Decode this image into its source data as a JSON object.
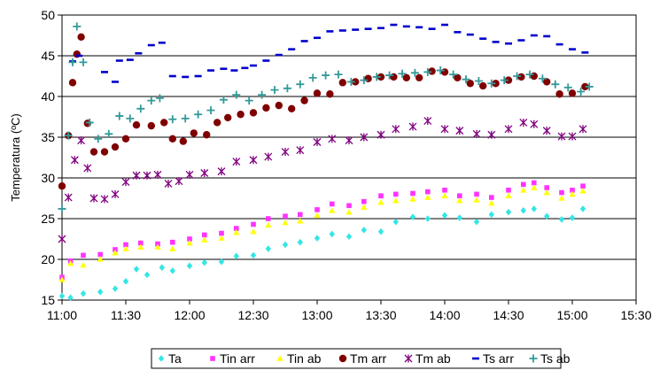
{
  "chart_data": {
    "type": "scatter",
    "ylabel": "Temperatura (ºC)",
    "xlabel": "",
    "ylim": [
      15,
      50
    ],
    "yticks": [
      15,
      20,
      25,
      30,
      35,
      40,
      45,
      50
    ],
    "xlim": [
      "11:00",
      "15:30"
    ],
    "xticks": [
      "11:00",
      "11:30",
      "12:00",
      "12:30",
      "13:00",
      "13:30",
      "14:00",
      "14:30",
      "15:00",
      "15:30"
    ],
    "grid": "horizontal",
    "legend_position": "bottom",
    "series": [
      {
        "name": "Ta",
        "color": "#33e6e6",
        "marker": "diamond",
        "points": [
          [
            "11:00",
            15.5
          ],
          [
            "11:04",
            15.3
          ],
          [
            "11:10",
            15.8
          ],
          [
            "11:18",
            16
          ],
          [
            "11:25",
            16.4
          ],
          [
            "11:30",
            17.3
          ],
          [
            "11:35",
            18.8
          ],
          [
            "11:40",
            18.1
          ],
          [
            "11:47",
            19
          ],
          [
            "11:52",
            18.6
          ],
          [
            "12:00",
            19.2
          ],
          [
            "12:07",
            19.6
          ],
          [
            "12:15",
            19.7
          ],
          [
            "12:22",
            20.4
          ],
          [
            "12:30",
            20.5
          ],
          [
            "12:37",
            21.3
          ],
          [
            "12:45",
            21.8
          ],
          [
            "12:52",
            22.1
          ],
          [
            "13:00",
            22.6
          ],
          [
            "13:07",
            23.1
          ],
          [
            "13:15",
            22.8
          ],
          [
            "13:22",
            23.6
          ],
          [
            "13:30",
            23.4
          ],
          [
            "13:37",
            24.6
          ],
          [
            "13:45",
            25.2
          ],
          [
            "13:52",
            25
          ],
          [
            "14:00",
            25.4
          ],
          [
            "14:07",
            25.1
          ],
          [
            "14:15",
            24.6
          ],
          [
            "14:22",
            25.5
          ],
          [
            "14:30",
            25.8
          ],
          [
            "14:37",
            26
          ],
          [
            "14:42",
            26.2
          ],
          [
            "14:48",
            25.3
          ],
          [
            "14:55",
            24.9
          ],
          [
            "15:00",
            25.1
          ],
          [
            "15:05",
            26.2
          ]
        ]
      },
      {
        "name": "Tin arr",
        "color": "#ff33ff",
        "marker": "square",
        "points": [
          [
            "11:00",
            17.8
          ],
          [
            "11:04",
            19.8
          ],
          [
            "11:10",
            20.5
          ],
          [
            "11:18",
            20.6
          ],
          [
            "11:25",
            21.2
          ],
          [
            "11:30",
            21.8
          ],
          [
            "11:37",
            22
          ],
          [
            "11:45",
            21.9
          ],
          [
            "11:52",
            22.1
          ],
          [
            "12:00",
            22.5
          ],
          [
            "12:07",
            23
          ],
          [
            "12:15",
            23.2
          ],
          [
            "12:22",
            23.8
          ],
          [
            "12:30",
            24.3
          ],
          [
            "12:37",
            25
          ],
          [
            "12:45",
            25.3
          ],
          [
            "12:52",
            25.5
          ],
          [
            "13:00",
            26.1
          ],
          [
            "13:07",
            26.8
          ],
          [
            "13:15",
            26.6
          ],
          [
            "13:22",
            27.1
          ],
          [
            "13:30",
            27.8
          ],
          [
            "13:37",
            28
          ],
          [
            "13:45",
            28.1
          ],
          [
            "13:52",
            28.3
          ],
          [
            "14:00",
            28.5
          ],
          [
            "14:07",
            27.8
          ],
          [
            "14:15",
            28
          ],
          [
            "14:22",
            27.6
          ],
          [
            "14:30",
            28.5
          ],
          [
            "14:37",
            29.2
          ],
          [
            "14:42",
            29.4
          ],
          [
            "14:48",
            28.8
          ],
          [
            "14:55",
            28.2
          ],
          [
            "15:00",
            28.5
          ],
          [
            "15:05",
            29
          ]
        ]
      },
      {
        "name": "Tin ab",
        "color": "#ffff00",
        "marker": "triangle",
        "points": [
          [
            "11:00",
            17.5
          ],
          [
            "11:04",
            19.5
          ],
          [
            "11:10",
            19.3
          ],
          [
            "11:18",
            20
          ],
          [
            "11:25",
            20.8
          ],
          [
            "11:30",
            21.3
          ],
          [
            "11:37",
            21.5
          ],
          [
            "11:45",
            21.5
          ],
          [
            "11:52",
            21.3
          ],
          [
            "12:00",
            22
          ],
          [
            "12:07",
            22.4
          ],
          [
            "12:15",
            22.6
          ],
          [
            "12:22",
            23.3
          ],
          [
            "12:30",
            23.4
          ],
          [
            "12:37",
            24.2
          ],
          [
            "12:45",
            24.5
          ],
          [
            "12:52",
            24.7
          ],
          [
            "13:00",
            25.4
          ],
          [
            "13:07",
            26
          ],
          [
            "13:15",
            25.8
          ],
          [
            "13:22",
            26.4
          ],
          [
            "13:30",
            27
          ],
          [
            "13:37",
            27.2
          ],
          [
            "13:45",
            27.4
          ],
          [
            "13:52",
            27.6
          ],
          [
            "14:00",
            27.8
          ],
          [
            "14:07",
            27.2
          ],
          [
            "14:15",
            27.3
          ],
          [
            "14:22",
            26.9
          ],
          [
            "14:30",
            27.8
          ],
          [
            "14:37",
            28.5
          ],
          [
            "14:42",
            28.8
          ],
          [
            "14:48",
            28.2
          ],
          [
            "14:55",
            27.5
          ],
          [
            "15:00",
            28
          ],
          [
            "15:05",
            28.4
          ]
        ]
      },
      {
        "name": "Tm arr",
        "color": "#800000",
        "marker": "circle",
        "points": [
          [
            "11:00",
            29
          ],
          [
            "11:03",
            35.2
          ],
          [
            "11:05",
            41.7
          ],
          [
            "11:07",
            45.2
          ],
          [
            "11:09",
            47.3
          ],
          [
            "11:12",
            36.7
          ],
          [
            "11:15",
            33.2
          ],
          [
            "11:20",
            33.2
          ],
          [
            "11:25",
            33.8
          ],
          [
            "11:30",
            34.8
          ],
          [
            "11:35",
            36.5
          ],
          [
            "11:42",
            36.4
          ],
          [
            "11:48",
            36.8
          ],
          [
            "11:52",
            34.8
          ],
          [
            "11:57",
            34.5
          ],
          [
            "12:02",
            35.5
          ],
          [
            "12:08",
            35.3
          ],
          [
            "12:13",
            36.8
          ],
          [
            "12:18",
            37.4
          ],
          [
            "12:24",
            37.8
          ],
          [
            "12:30",
            38
          ],
          [
            "12:36",
            38.6
          ],
          [
            "12:42",
            38.9
          ],
          [
            "12:48",
            38.5
          ],
          [
            "12:54",
            39.5
          ],
          [
            "13:00",
            40.4
          ],
          [
            "13:06",
            40.3
          ],
          [
            "13:12",
            41.7
          ],
          [
            "13:18",
            41.8
          ],
          [
            "13:24",
            42.2
          ],
          [
            "13:30",
            42.4
          ],
          [
            "13:36",
            42.4
          ],
          [
            "13:42",
            42.3
          ],
          [
            "13:48",
            42.3
          ],
          [
            "13:54",
            43.1
          ],
          [
            "14:00",
            43
          ],
          [
            "14:06",
            42.3
          ],
          [
            "14:12",
            41.6
          ],
          [
            "14:18",
            41.3
          ],
          [
            "14:24",
            41.6
          ],
          [
            "14:30",
            42
          ],
          [
            "14:36",
            42.4
          ],
          [
            "14:42",
            42.5
          ],
          [
            "14:48",
            41.8
          ],
          [
            "14:54",
            40.3
          ],
          [
            "15:00",
            40.4
          ],
          [
            "15:06",
            41.2
          ]
        ]
      },
      {
        "name": "Tm ab",
        "color": "#800080",
        "marker": "asterisk",
        "points": [
          [
            "11:00",
            22.5
          ],
          [
            "11:03",
            27.6
          ],
          [
            "11:06",
            32.2
          ],
          [
            "11:09",
            34.6
          ],
          [
            "11:12",
            31.2
          ],
          [
            "11:15",
            27.5
          ],
          [
            "11:20",
            27.4
          ],
          [
            "11:25",
            28
          ],
          [
            "11:30",
            29.5
          ],
          [
            "11:35",
            30.3
          ],
          [
            "11:40",
            30.3
          ],
          [
            "11:45",
            30.4
          ],
          [
            "11:50",
            29.3
          ],
          [
            "11:55",
            29.6
          ],
          [
            "12:00",
            30.4
          ],
          [
            "12:07",
            30.6
          ],
          [
            "12:15",
            30.8
          ],
          [
            "12:22",
            32
          ],
          [
            "12:30",
            32.2
          ],
          [
            "12:37",
            32.6
          ],
          [
            "12:45",
            33.2
          ],
          [
            "12:52",
            33.4
          ],
          [
            "13:00",
            34.4
          ],
          [
            "13:07",
            34.8
          ],
          [
            "13:15",
            34.6
          ],
          [
            "13:22",
            35
          ],
          [
            "13:30",
            35.3
          ],
          [
            "13:37",
            36
          ],
          [
            "13:45",
            36.3
          ],
          [
            "13:52",
            37
          ],
          [
            "14:00",
            36
          ],
          [
            "14:07",
            35.8
          ],
          [
            "14:15",
            35.4
          ],
          [
            "14:22",
            35.3
          ],
          [
            "14:30",
            36
          ],
          [
            "14:37",
            36.8
          ],
          [
            "14:42",
            36.6
          ],
          [
            "14:48",
            35.8
          ],
          [
            "14:55",
            35.1
          ],
          [
            "15:00",
            35.1
          ],
          [
            "15:05",
            36
          ]
        ]
      },
      {
        "name": "Ts arr",
        "color": "#0000cc",
        "marker": "dash",
        "points": [
          [
            "11:05",
            44.3
          ],
          [
            "11:08",
            45
          ],
          [
            "11:20",
            43
          ],
          [
            "11:25",
            41.8
          ],
          [
            "11:27",
            44.4
          ],
          [
            "11:32",
            44.5
          ],
          [
            "11:36",
            45.3
          ],
          [
            "11:42",
            46.3
          ],
          [
            "11:47",
            46.6
          ],
          [
            "11:52",
            42.5
          ],
          [
            "11:58",
            42.4
          ],
          [
            "12:04",
            42.5
          ],
          [
            "12:10",
            43.2
          ],
          [
            "12:16",
            43.4
          ],
          [
            "12:21",
            43.2
          ],
          [
            "12:26",
            43.5
          ],
          [
            "12:30",
            43.8
          ],
          [
            "12:36",
            44.4
          ],
          [
            "12:42",
            45.1
          ],
          [
            "12:48",
            45.8
          ],
          [
            "12:54",
            46.8
          ],
          [
            "13:00",
            47.2
          ],
          [
            "13:06",
            48
          ],
          [
            "13:12",
            48.1
          ],
          [
            "13:18",
            48.2
          ],
          [
            "13:24",
            48.3
          ],
          [
            "13:30",
            48.4
          ],
          [
            "13:36",
            48.8
          ],
          [
            "13:42",
            48.6
          ],
          [
            "13:48",
            48.5
          ],
          [
            "13:54",
            48.3
          ],
          [
            "14:00",
            48.8
          ],
          [
            "14:06",
            47.9
          ],
          [
            "14:12",
            47.6
          ],
          [
            "14:18",
            47.1
          ],
          [
            "14:24",
            46.7
          ],
          [
            "14:30",
            46.5
          ],
          [
            "14:36",
            46.9
          ],
          [
            "14:42",
            47.5
          ],
          [
            "14:48",
            47.4
          ],
          [
            "14:54",
            46.4
          ],
          [
            "15:00",
            45.8
          ],
          [
            "15:06",
            45.4
          ]
        ]
      },
      {
        "name": "Ts ab",
        "color": "#339999",
        "marker": "plus",
        "points": [
          [
            "11:00",
            26.2
          ],
          [
            "11:03",
            35.2
          ],
          [
            "11:05",
            44.2
          ],
          [
            "11:07",
            48.6
          ],
          [
            "11:10",
            44.2
          ],
          [
            "11:13",
            36.8
          ],
          [
            "11:17",
            34.8
          ],
          [
            "11:22",
            35.4
          ],
          [
            "11:27",
            37.6
          ],
          [
            "11:32",
            37.3
          ],
          [
            "11:37",
            38.5
          ],
          [
            "11:42",
            39.5
          ],
          [
            "11:46",
            39.8
          ],
          [
            "11:52",
            37.2
          ],
          [
            "11:58",
            37.3
          ],
          [
            "12:04",
            37.8
          ],
          [
            "12:10",
            38.3
          ],
          [
            "12:16",
            39.6
          ],
          [
            "12:22",
            40.2
          ],
          [
            "12:28",
            39.5
          ],
          [
            "12:34",
            40.2
          ],
          [
            "12:40",
            40.8
          ],
          [
            "12:46",
            41
          ],
          [
            "12:52",
            41.5
          ],
          [
            "12:58",
            42.3
          ],
          [
            "13:04",
            42.6
          ],
          [
            "13:10",
            42.7
          ],
          [
            "13:16",
            41.8
          ],
          [
            "13:22",
            42
          ],
          [
            "13:28",
            42.4
          ],
          [
            "13:34",
            42.6
          ],
          [
            "13:40",
            42.8
          ],
          [
            "13:46",
            42.9
          ],
          [
            "13:52",
            43
          ],
          [
            "13:58",
            43.2
          ],
          [
            "14:04",
            42.7
          ],
          [
            "14:10",
            42.1
          ],
          [
            "14:16",
            41.9
          ],
          [
            "14:22",
            41.6
          ],
          [
            "14:28",
            42
          ],
          [
            "14:34",
            42.5
          ],
          [
            "14:40",
            42.7
          ],
          [
            "14:46",
            42.2
          ],
          [
            "14:52",
            41.5
          ],
          [
            "14:58",
            41.1
          ],
          [
            "15:04",
            40.6
          ],
          [
            "15:08",
            41.2
          ]
        ]
      }
    ]
  }
}
